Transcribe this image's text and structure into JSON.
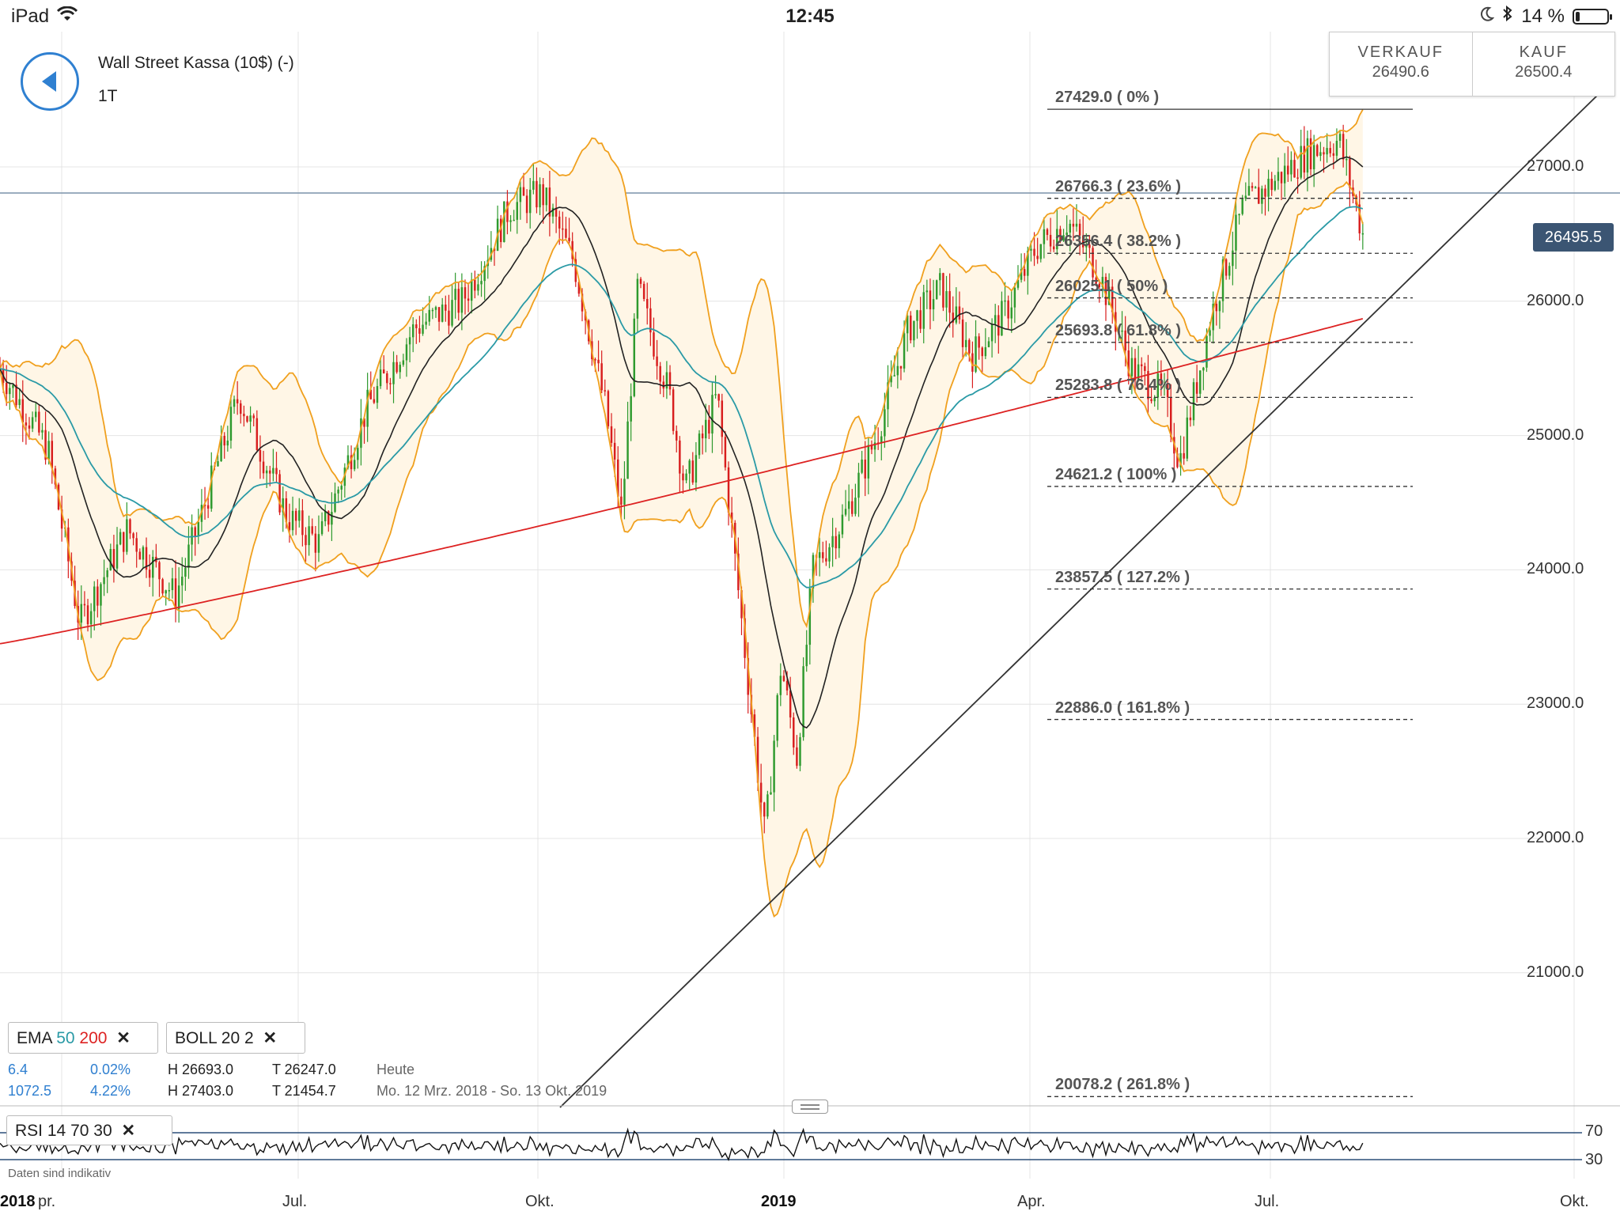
{
  "status_bar": {
    "device": "iPad",
    "time": "12:45",
    "battery": "14 %"
  },
  "header": {
    "instrument": "Wall Street Kassa (10$) (-)",
    "timeframe": "1T"
  },
  "quote": {
    "sell_label": "VERKAUF",
    "sell_value": "26490.6",
    "buy_label": "KAUF",
    "buy_value": "26500.4"
  },
  "current_price": "26495.5",
  "indicators": {
    "ema": {
      "label": "EMA",
      "p1": "50",
      "p2": "200"
    },
    "boll": {
      "label": "BOLL",
      "p1": "20",
      "p2": "2"
    },
    "rsi": {
      "label": "RSI",
      "p1": "14",
      "p2": "70",
      "p3": "30"
    }
  },
  "info": {
    "row1_a": "6.4",
    "row1_b": "0.02%",
    "row1_h": "H 26693.0",
    "row1_t": "T 26247.0",
    "row1_label": "Heute",
    "row2_a": "1072.5",
    "row2_b": "4.22%",
    "row2_h": "H 27403.0",
    "row2_t": "T 21454.7",
    "row2_label": "Mo. 12 Mrz. 2018 - So. 13 Okt. 2019"
  },
  "disclaimer": "Daten sind indikativ",
  "colors": {
    "accent": "#2f80d1",
    "up": "#2e9a2e",
    "down": "#d81e1e",
    "ema50": "#2a9aa6",
    "ema200": "#d22",
    "boll": "#f0a01e",
    "badge": "#3b5573"
  },
  "icons": [
    "back-arrow-icon",
    "wifi-icon",
    "moon-icon",
    "bluetooth-icon",
    "battery-icon",
    "close-icon"
  ],
  "chart_data": {
    "type": "candlestick",
    "title": "Wall Street Kassa (10$) (-)",
    "ylim": [
      20000,
      27900
    ],
    "y_ticks": [
      "27000.0",
      "26000.0",
      "25000.0",
      "24000.0",
      "23000.0",
      "22000.0",
      "21000.0"
    ],
    "x_ticks": [
      {
        "label": "2018",
        "year": true
      },
      {
        "label": "pr.",
        "year": false
      },
      {
        "label": "Jul.",
        "year": false
      },
      {
        "label": "Okt.",
        "year": false
      },
      {
        "label": "2019",
        "year": true
      },
      {
        "label": "Apr.",
        "year": false
      },
      {
        "label": "Jul.",
        "year": false
      },
      {
        "label": "Okt.",
        "year": false
      }
    ],
    "fibonacci": [
      {
        "label": "27429.0 ( 0% )",
        "value": 27429.0
      },
      {
        "label": "26766.3 ( 23.6% )",
        "value": 26766.3
      },
      {
        "label": "26356.4 ( 38.2% )",
        "value": 26356.4
      },
      {
        "label": "26025.1 ( 50% )",
        "value": 26025.1
      },
      {
        "label": "25693.8 ( 61.8% )",
        "value": 25693.8
      },
      {
        "label": "25283.8 ( 76.4% )",
        "value": 25283.8
      },
      {
        "label": "24621.2 ( 100% )",
        "value": 24621.2
      },
      {
        "label": "23857.5 ( 127.2% )",
        "value": 23857.5
      },
      {
        "label": "22886.0 ( 161.8% )",
        "value": 22886.0
      },
      {
        "label": "20078.2 ( 261.8% )",
        "value": 20078.2
      }
    ],
    "rsi_levels": [
      "70",
      "30"
    ],
    "close_path": [
      [
        0,
        25500
      ],
      [
        0.03,
        24900
      ],
      [
        0.05,
        23600
      ],
      [
        0.08,
        24300
      ],
      [
        0.11,
        23800
      ],
      [
        0.15,
        25300
      ],
      [
        0.18,
        24400
      ],
      [
        0.2,
        24200
      ],
      [
        0.23,
        25200
      ],
      [
        0.26,
        25800
      ],
      [
        0.29,
        26000
      ],
      [
        0.32,
        26700
      ],
      [
        0.34,
        26800
      ],
      [
        0.36,
        26300
      ],
      [
        0.38,
        25200
      ],
      [
        0.39,
        24400
      ],
      [
        0.4,
        26100
      ],
      [
        0.42,
        25300
      ],
      [
        0.43,
        24600
      ],
      [
        0.45,
        25300
      ],
      [
        0.46,
        24200
      ],
      [
        0.48,
        22000
      ],
      [
        0.49,
        23300
      ],
      [
        0.5,
        22600
      ],
      [
        0.51,
        24000
      ],
      [
        0.53,
        24400
      ],
      [
        0.55,
        25000
      ],
      [
        0.57,
        25800
      ],
      [
        0.59,
        26100
      ],
      [
        0.61,
        25600
      ],
      [
        0.63,
        25900
      ],
      [
        0.65,
        26400
      ],
      [
        0.67,
        26600
      ],
      [
        0.69,
        26200
      ],
      [
        0.71,
        25500
      ],
      [
        0.73,
        25300
      ],
      [
        0.74,
        24800
      ],
      [
        0.76,
        25900
      ],
      [
        0.78,
        26700
      ],
      [
        0.8,
        26900
      ],
      [
        0.82,
        27100
      ],
      [
        0.84,
        27200
      ],
      [
        0.855,
        26500
      ]
    ]
  }
}
